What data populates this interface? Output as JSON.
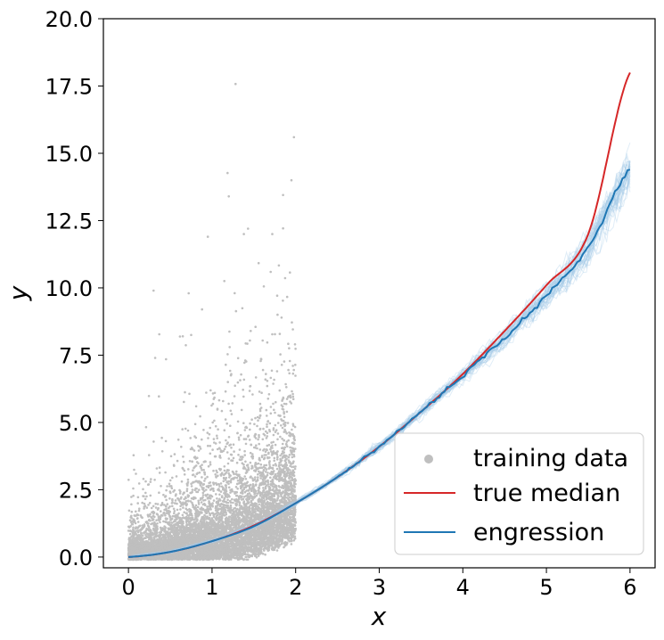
{
  "chart_data": {
    "type": "scatter",
    "title": "",
    "xlabel": "x",
    "ylabel": "y",
    "xlim": [
      -0.3,
      6.3
    ],
    "ylim": [
      -0.4,
      20.0
    ],
    "xticks": [
      {
        "value": 0,
        "label": "0"
      },
      {
        "value": 1,
        "label": "1"
      },
      {
        "value": 2,
        "label": "2"
      },
      {
        "value": 3,
        "label": "3"
      },
      {
        "value": 4,
        "label": "4"
      },
      {
        "value": 5,
        "label": "5"
      },
      {
        "value": 6,
        "label": "6"
      }
    ],
    "yticks": [
      {
        "value": 0.0,
        "label": "0.0"
      },
      {
        "value": 2.5,
        "label": "2.5"
      },
      {
        "value": 5.0,
        "label": "5.0"
      },
      {
        "value": 7.5,
        "label": "7.5"
      },
      {
        "value": 10.0,
        "label": "10.0"
      },
      {
        "value": 12.5,
        "label": "12.5"
      },
      {
        "value": 15.0,
        "label": "15.0"
      },
      {
        "value": 17.5,
        "label": "17.5"
      },
      {
        "value": 20.0,
        "label": "20.0"
      }
    ],
    "grid": false,
    "legend_position": "lower-right",
    "series": [
      {
        "name": "training data",
        "kind": "scatter",
        "color": "#bfbfbf",
        "x_range": [
          0,
          2
        ],
        "outliers": [
          [
            0.3,
            9.9
          ],
          [
            0.72,
            9.8
          ],
          [
            0.95,
            11.9
          ],
          [
            1.2,
            13.4
          ],
          [
            1.38,
            12.0
          ],
          [
            1.43,
            12.2
          ],
          [
            1.72,
            12.0
          ],
          [
            1.85,
            13.45
          ],
          [
            1.95,
            14.0
          ],
          [
            1.98,
            15.6
          ],
          [
            0.32,
            7.4
          ],
          [
            0.45,
            7.35
          ],
          [
            0.65,
            8.2
          ],
          [
            0.75,
            8.25
          ],
          [
            0.88,
            9.2
          ]
        ]
      },
      {
        "name": "true median",
        "kind": "line",
        "color": "#d62728",
        "x": [
          0,
          0.5,
          1,
          1.5,
          2,
          2.5,
          3,
          3.5,
          4,
          4.5,
          5,
          5.5,
          6
        ],
        "y": [
          0,
          0.19,
          0.59,
          1.17,
          2.0,
          2.97,
          4.1,
          5.4,
          6.8,
          8.4,
          10.1,
          12.0,
          18.0
        ]
      },
      {
        "name": "engression",
        "kind": "line",
        "color": "#1f77b4",
        "band_color": "#a6cbe8",
        "x": [
          0,
          0.5,
          1,
          1.5,
          2,
          2.5,
          3,
          3.5,
          4,
          4.5,
          5,
          5.5,
          6
        ],
        "y": [
          0,
          0.19,
          0.59,
          1.14,
          2.0,
          2.97,
          4.1,
          5.4,
          6.75,
          8.15,
          9.7,
          11.5,
          14.4
        ],
        "band_halfwidth": [
          0.05,
          0.06,
          0.07,
          0.09,
          0.1,
          0.15,
          0.2,
          0.25,
          0.3,
          0.4,
          0.5,
          0.7,
          1.0
        ]
      }
    ],
    "legend": [
      {
        "label": "training data",
        "marker": "dot",
        "color": "#bfbfbf"
      },
      {
        "label": "true median",
        "marker": "line",
        "color": "#d62728"
      },
      {
        "label": "engression",
        "marker": "line",
        "color": "#1f77b4"
      }
    ]
  }
}
